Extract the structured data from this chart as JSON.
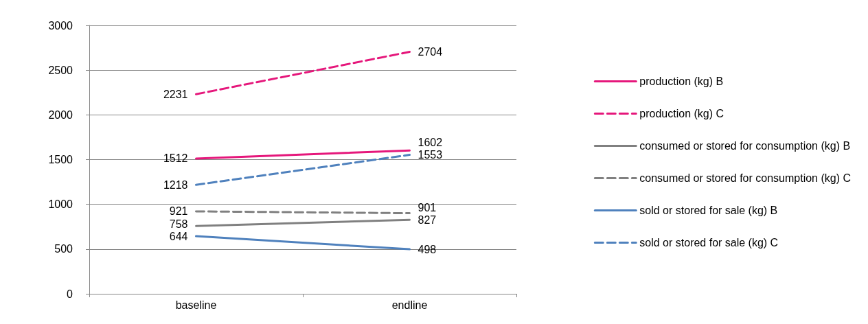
{
  "chart_data": {
    "type": "line",
    "categories": [
      "baseline",
      "endline"
    ],
    "series": [
      {
        "name": "production (kg) B",
        "color": "#e5177b",
        "line_style": "solid",
        "values": [
          1512,
          1602
        ]
      },
      {
        "name": "production (kg) C",
        "color": "#e5177b",
        "line_style": "dashed",
        "values": [
          2231,
          2704
        ]
      },
      {
        "name": "consumed or stored for consumption (kg) B",
        "color": "#808080",
        "line_style": "solid",
        "values": [
          758,
          827
        ]
      },
      {
        "name": "consumed or stored for consumption (kg) C",
        "color": "#808080",
        "line_style": "dashed",
        "values": [
          921,
          901
        ]
      },
      {
        "name": "sold or stored for sale (kg) B",
        "color": "#4f81bd",
        "line_style": "solid",
        "values": [
          644,
          498
        ]
      },
      {
        "name": "sold or stored for sale (kg) C",
        "color": "#4f81bd",
        "line_style": "dashed",
        "values": [
          1218,
          1553
        ]
      }
    ],
    "ylim": [
      0,
      3000
    ],
    "yticks": [
      0,
      500,
      1000,
      1500,
      2000,
      2500,
      3000
    ],
    "grid": "y",
    "legend": "right",
    "marker": "none",
    "data_labels": true
  }
}
